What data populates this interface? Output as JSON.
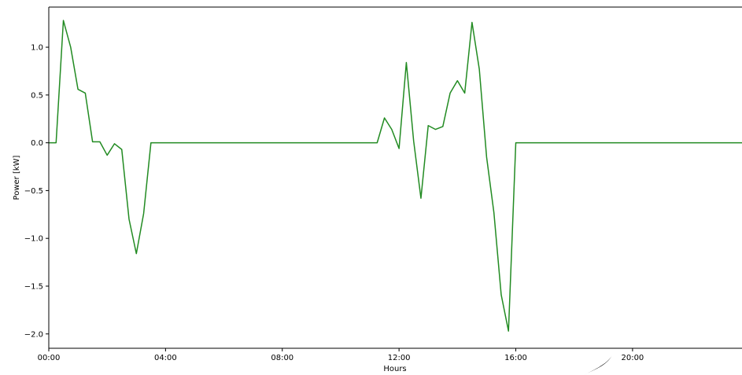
{
  "chart_data": {
    "type": "line",
    "xlabel": "Hours",
    "ylabel": "Power [kW]",
    "xlim": [
      0,
      23.75
    ],
    "ylim": [
      -2.15,
      1.42
    ],
    "grid": false,
    "x_ticks": [
      {
        "value": 0,
        "label": "00:00"
      },
      {
        "value": 4,
        "label": "04:00"
      },
      {
        "value": 8,
        "label": "08:00"
      },
      {
        "value": 12,
        "label": "12:00"
      },
      {
        "value": 16,
        "label": "16:00"
      },
      {
        "value": 20,
        "label": "20:00"
      }
    ],
    "y_ticks": [
      {
        "value": 1.0,
        "label": "1.0"
      },
      {
        "value": 0.5,
        "label": "0.5"
      },
      {
        "value": 0.0,
        "label": "0.0"
      },
      {
        "value": -0.5,
        "label": "−0.5"
      },
      {
        "value": -1.0,
        "label": "−1.0"
      },
      {
        "value": -1.5,
        "label": "−1.5"
      },
      {
        "value": -2.0,
        "label": "−2.0"
      }
    ],
    "series": [
      {
        "color": "#228B22",
        "x": [
          0,
          0.25,
          0.5,
          0.75,
          1.0,
          1.25,
          1.5,
          1.75,
          2.0,
          2.25,
          2.5,
          2.75,
          3.0,
          3.25,
          3.5,
          11.25,
          11.5,
          11.75,
          12.0,
          12.25,
          12.5,
          12.75,
          13.0,
          13.25,
          13.5,
          13.75,
          14.0,
          14.25,
          14.5,
          14.75,
          15.0,
          15.25,
          15.5,
          15.75,
          16.0,
          23.75
        ],
        "y": [
          0,
          0,
          1.28,
          1.0,
          0.56,
          0.52,
          0.01,
          0.01,
          -0.13,
          -0.01,
          -0.07,
          -0.8,
          -1.16,
          -0.74,
          0,
          0,
          0.26,
          0.14,
          -0.06,
          0.84,
          0.02,
          -0.58,
          0.18,
          0.14,
          0.17,
          0.52,
          0.65,
          0.52,
          1.26,
          0.77,
          -0.15,
          -0.73,
          -1.59,
          -1.97,
          0,
          0
        ]
      }
    ]
  }
}
